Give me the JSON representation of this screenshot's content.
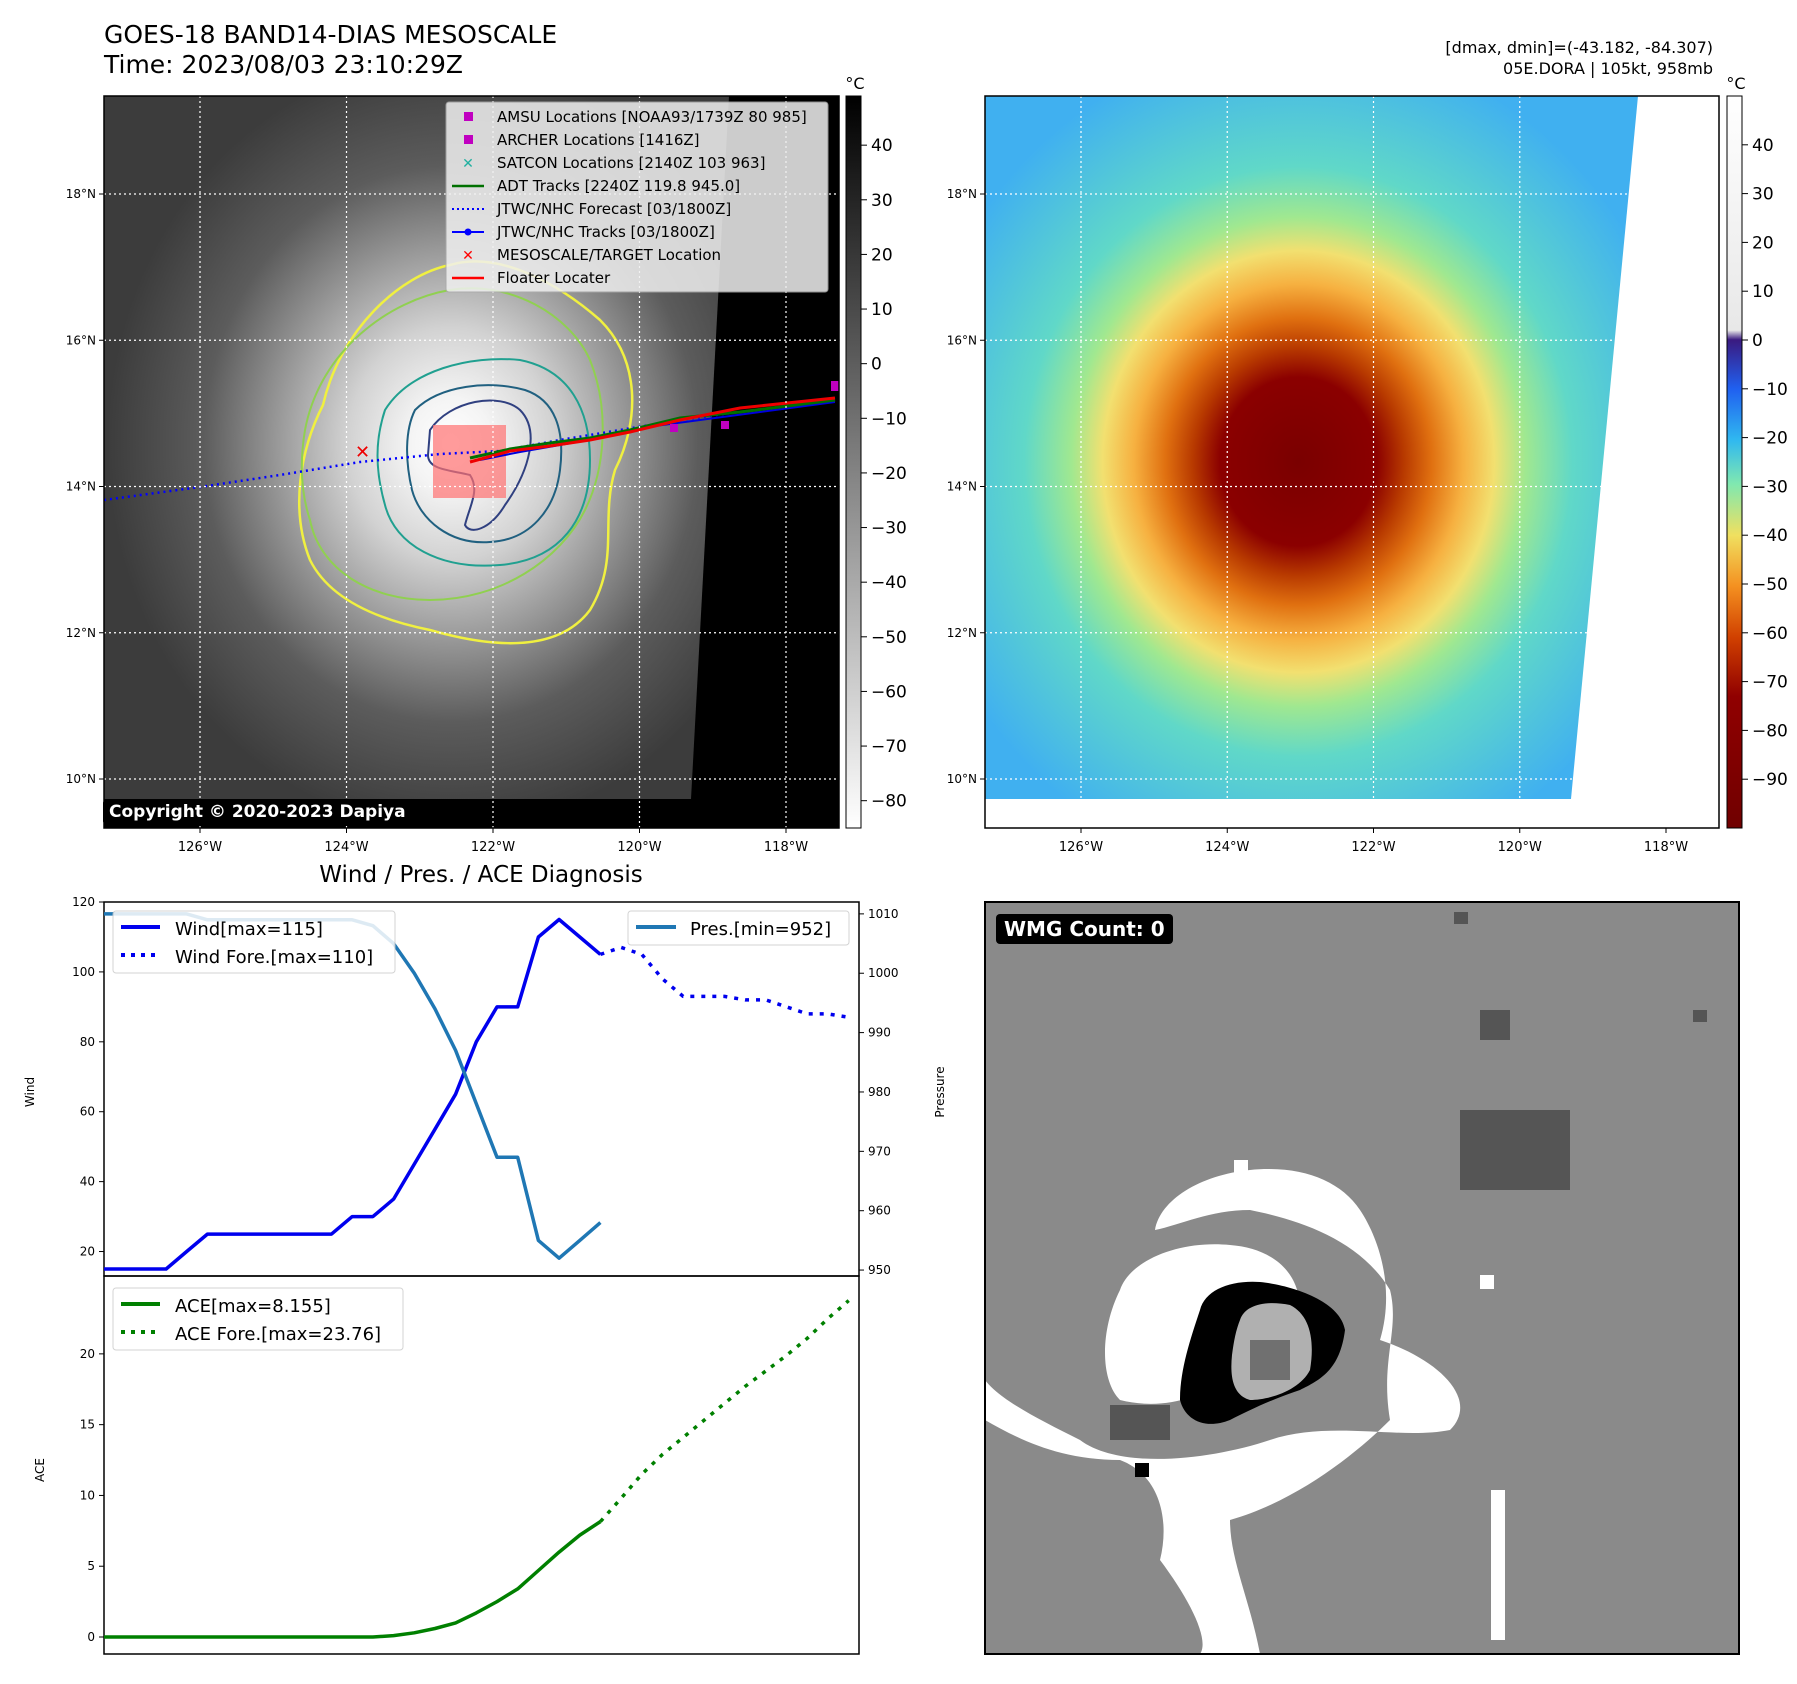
{
  "header": {
    "title": "GOES-18 BAND14-DIAS MESOSCALE",
    "time": "Time: 2023/08/03 23:10:29Z",
    "dminmax": "[dmax, dmin]=(-43.182, -84.307)",
    "storm": "05E.DORA | 105kt, 958mb"
  },
  "map": {
    "lat_labels": [
      "18°N",
      "16°N",
      "14°N",
      "12°N",
      "10°N"
    ],
    "lat_values": [
      18,
      16,
      14,
      12,
      10
    ],
    "lon_labels": [
      "126°W",
      "124°W",
      "122°W",
      "120°W",
      "118°W"
    ],
    "lon_values": [
      -126,
      -124,
      -122,
      -120,
      -118
    ],
    "copyright": "Copyright © 2020-2023 Dapiya",
    "legend": [
      {
        "label": "AMSU Locations [NOAA93/1739Z 80 985]",
        "color": "#c000c0",
        "marker": "square"
      },
      {
        "label": "ARCHER Locations [1416Z]",
        "color": "#c000c0",
        "marker": "square"
      },
      {
        "label": "SATCON Locations [2140Z 103 963]",
        "color": "#20b0a0",
        "marker": "x"
      },
      {
        "label": "ADT Tracks [2240Z 119.8 945.0]",
        "color": "#007000",
        "marker": "line"
      },
      {
        "label": "JTWC/NHC Forecast [03/1800Z]",
        "color": "#0000ff",
        "marker": "dotted"
      },
      {
        "label": "JTWC/NHC Tracks [03/1800Z]",
        "color": "#0000ff",
        "marker": "line-dot"
      },
      {
        "label": "MESOSCALE/TARGET Location",
        "color": "#ff0000",
        "marker": "x"
      },
      {
        "label": "Floater Locater",
        "color": "#ff0000",
        "marker": "line"
      }
    ]
  },
  "colorbar_left": {
    "unit": "°C",
    "ticks": [
      "40",
      "30",
      "20",
      "10",
      "0",
      "−10",
      "−20",
      "−30",
      "−40",
      "−50",
      "−60",
      "−70",
      "−80"
    ],
    "values": [
      40,
      30,
      20,
      10,
      0,
      -10,
      -20,
      -30,
      -40,
      -50,
      -60,
      -70,
      -80
    ],
    "range": [
      49,
      -85
    ]
  },
  "colorbar_right": {
    "unit": "°C",
    "ticks": [
      "40",
      "30",
      "20",
      "10",
      "0",
      "−10",
      "−20",
      "−30",
      "−40",
      "−50",
      "−60",
      "−70",
      "−80",
      "−90"
    ],
    "values": [
      40,
      30,
      20,
      10,
      0,
      -10,
      -20,
      -30,
      -40,
      -50,
      -60,
      -70,
      -80,
      -90
    ],
    "range": [
      50,
      -100
    ]
  },
  "wmg": {
    "label": "WMG Count: 0"
  },
  "chart_data": [
    {
      "type": "line",
      "title": "Wind / Pres. / ACE Diagnosis",
      "ylabel": "Wind",
      "y2label": "Pressure",
      "ylim": [
        13,
        120
      ],
      "y2lim": [
        949,
        1012
      ],
      "yticks": [
        20,
        40,
        60,
        80,
        100,
        120
      ],
      "y2ticks": [
        950,
        960,
        970,
        980,
        990,
        1000,
        1010
      ],
      "xlim": [
        0,
        36.5
      ],
      "series": [
        {
          "name": "Wind[max=115]",
          "color": "#0000ee",
          "style": "solid",
          "x": [
            0,
            1,
            2,
            3,
            4,
            5,
            6,
            7,
            8,
            9,
            10,
            11,
            12,
            13,
            14,
            15,
            16,
            17,
            18,
            19,
            20,
            21,
            22,
            23,
            24,
            25,
            26
          ],
          "values": [
            15,
            15,
            15,
            15,
            20,
            25,
            25,
            25,
            25,
            25,
            25,
            25,
            30,
            30,
            35,
            45,
            55,
            65,
            80,
            90,
            90,
            110,
            115,
            110,
            105,
            null,
            null
          ]
        },
        {
          "name": "Wind Fore.[max=110]",
          "color": "#0000ee",
          "style": "dotted",
          "x": [
            24,
            25,
            26,
            27,
            28,
            29,
            30,
            31,
            32,
            33,
            34,
            35,
            36
          ],
          "values": [
            105,
            107,
            105,
            98,
            93,
            93,
            93,
            92,
            92,
            90,
            88,
            88,
            87
          ]
        },
        {
          "name": "Pres.[min=952]",
          "color": "#1f77b4",
          "style": "solid",
          "axis": "y2",
          "x": [
            0,
            1,
            2,
            3,
            4,
            5,
            6,
            7,
            8,
            9,
            10,
            11,
            12,
            13,
            14,
            15,
            16,
            17,
            18,
            19,
            20,
            21,
            22,
            23,
            24
          ],
          "values": [
            1010,
            1010,
            1010,
            1010,
            1010,
            1009,
            1009,
            1009,
            1009,
            1009,
            1009,
            1009,
            1009,
            1008,
            1005,
            1000,
            994,
            987,
            978,
            969,
            969,
            955,
            952,
            955,
            958
          ]
        }
      ]
    },
    {
      "type": "line",
      "ylabel": "ACE",
      "ylim": [
        -1.2,
        25.5
      ],
      "yticks": [
        0,
        5,
        10,
        15,
        20
      ],
      "xlim": [
        0,
        36.5
      ],
      "series": [
        {
          "name": "ACE[max=8.155]",
          "color": "#008000",
          "style": "solid",
          "x": [
            0,
            2,
            4,
            6,
            8,
            10,
            12,
            13,
            14,
            15,
            16,
            17,
            18,
            19,
            20,
            21,
            22,
            23,
            24
          ],
          "values": [
            0,
            0,
            0,
            0,
            0,
            0,
            0,
            0,
            0.1,
            0.3,
            0.6,
            1.0,
            1.7,
            2.5,
            3.4,
            4.7,
            6.0,
            7.2,
            8.155
          ]
        },
        {
          "name": "ACE Fore.[max=23.76]",
          "color": "#008000",
          "style": "dotted",
          "x": [
            24,
            25,
            26,
            27,
            28,
            29,
            30,
            31,
            32,
            33,
            34,
            35,
            36
          ],
          "values": [
            8.155,
            9.8,
            11.5,
            12.9,
            14.1,
            15.3,
            16.5,
            17.7,
            18.8,
            19.9,
            21.1,
            22.5,
            23.76
          ]
        }
      ]
    }
  ]
}
